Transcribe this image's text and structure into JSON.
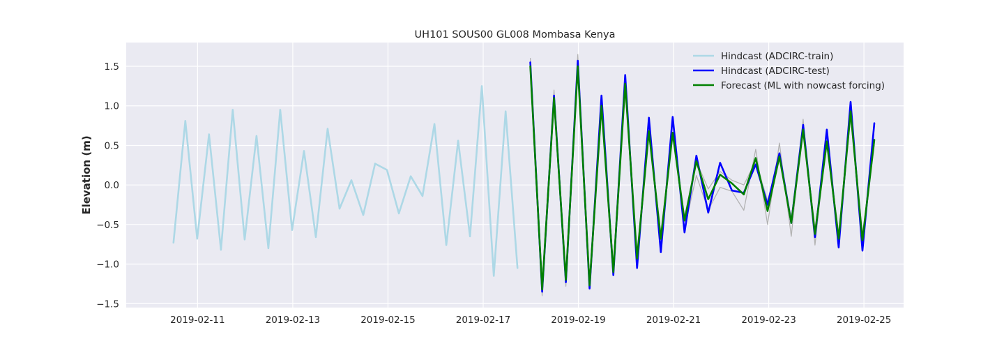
{
  "chart_data": {
    "type": "line",
    "title": "UH101 SOUS00 GL008 Mombasa Kenya",
    "xlabel": "",
    "ylabel": "Elevation (m)",
    "x_axis": "date",
    "xlim": [
      "2019-02-09T12:00",
      "2019-02-25T20:00"
    ],
    "ylim": [
      -1.55,
      1.8
    ],
    "grid": true,
    "legend_position": "top-right",
    "x_ticks": [
      "2019-02-11",
      "2019-02-13",
      "2019-02-15",
      "2019-02-17",
      "2019-02-19",
      "2019-02-21",
      "2019-02-23",
      "2019-02-25"
    ],
    "y_ticks": [
      {
        "value": 1.5,
        "label": "1.5"
      },
      {
        "value": 1.0,
        "label": "1.0"
      },
      {
        "value": 0.5,
        "label": "0.5"
      },
      {
        "value": 0.0,
        "label": "0.0"
      },
      {
        "value": -0.5,
        "label": "−0.5"
      },
      {
        "value": -1.0,
        "label": "−1.0"
      },
      {
        "value": -1.5,
        "label": "−1.5"
      }
    ],
    "series": [
      {
        "name": "",
        "color": "#b3b3b3",
        "in_legend": false,
        "points": [
          [
            "2019-02-17T23:46",
            1.6
          ],
          [
            "2019-02-18T05:45",
            -1.4
          ],
          [
            "2019-02-18T11:44",
            1.2
          ],
          [
            "2019-02-18T17:43",
            -1.28
          ],
          [
            "2019-02-18T23:42",
            1.65
          ],
          [
            "2019-02-19T05:40",
            -1.3
          ],
          [
            "2019-02-19T11:39",
            1.1
          ],
          [
            "2019-02-19T17:38",
            -1.12
          ],
          [
            "2019-02-19T23:37",
            1.35
          ],
          [
            "2019-02-20T05:36",
            -1.0
          ],
          [
            "2019-02-20T11:35",
            0.8
          ],
          [
            "2019-02-20T17:34",
            -0.75
          ],
          [
            "2019-02-20T23:33",
            0.8
          ],
          [
            "2019-02-21T05:32",
            -0.55
          ],
          [
            "2019-02-21T11:30",
            0.12
          ],
          [
            "2019-02-21T17:29",
            -0.32
          ],
          [
            "2019-02-21T23:28",
            -0.03
          ],
          [
            "2019-02-22T05:27",
            -0.08
          ],
          [
            "2019-02-22T11:26",
            -0.32
          ],
          [
            "2019-02-22T17:25",
            0.45
          ],
          [
            "2019-02-22T23:24",
            -0.5
          ],
          [
            "2019-02-23T05:23",
            0.53
          ],
          [
            "2019-02-23T11:22",
            -0.65
          ],
          [
            "2019-02-23T17:20",
            0.83
          ],
          [
            "2019-02-23T23:19",
            -0.76
          ],
          [
            "2019-02-24T05:18",
            0.62
          ],
          [
            "2019-02-24T11:17",
            -0.8
          ],
          [
            "2019-02-24T17:16",
            0.99
          ],
          [
            "2019-02-24T23:15",
            -0.78
          ],
          [
            "2019-02-25T05:14",
            0.55
          ]
        ]
      },
      {
        "name": "",
        "color": "#b3b3b3",
        "in_legend": false,
        "points": [
          [
            "2019-02-17T23:46",
            1.5
          ],
          [
            "2019-02-18T05:45",
            -1.3
          ],
          [
            "2019-02-18T11:44",
            1.05
          ],
          [
            "2019-02-18T17:43",
            -1.15
          ],
          [
            "2019-02-18T23:42",
            1.45
          ],
          [
            "2019-02-19T05:40",
            -1.2
          ],
          [
            "2019-02-19T11:39",
            0.95
          ],
          [
            "2019-02-19T17:38",
            -1.0
          ],
          [
            "2019-02-19T23:37",
            1.2
          ],
          [
            "2019-02-20T05:36",
            -0.85
          ],
          [
            "2019-02-20T11:35",
            0.65
          ],
          [
            "2019-02-20T17:34",
            -0.6
          ],
          [
            "2019-02-20T23:33",
            0.62
          ],
          [
            "2019-02-21T05:32",
            -0.4
          ],
          [
            "2019-02-21T11:30",
            0.3
          ],
          [
            "2019-02-21T17:29",
            -0.05
          ],
          [
            "2019-02-21T23:28",
            0.17
          ],
          [
            "2019-02-22T05:27",
            0.06
          ],
          [
            "2019-02-22T11:26",
            0.0
          ],
          [
            "2019-02-22T17:25",
            0.3
          ],
          [
            "2019-02-22T23:24",
            -0.2
          ],
          [
            "2019-02-23T05:23",
            0.36
          ],
          [
            "2019-02-23T11:22",
            -0.42
          ],
          [
            "2019-02-23T17:20",
            0.72
          ],
          [
            "2019-02-23T23:19",
            -0.55
          ],
          [
            "2019-02-24T05:18",
            0.5
          ],
          [
            "2019-02-24T11:17",
            -0.6
          ],
          [
            "2019-02-24T17:16",
            0.85
          ],
          [
            "2019-02-24T23:15",
            -0.62
          ],
          [
            "2019-02-25T05:14",
            0.5
          ]
        ]
      },
      {
        "name": "Hindcast (ADCIRC-train)",
        "color": "#add8e6",
        "in_legend": true,
        "points": [
          [
            "2019-02-10T11:50",
            -0.73
          ],
          [
            "2019-02-10T17:49",
            0.81
          ],
          [
            "2019-02-10T23:48",
            -0.68
          ],
          [
            "2019-02-11T05:47",
            0.64
          ],
          [
            "2019-02-11T11:46",
            -0.82
          ],
          [
            "2019-02-11T17:44",
            0.95
          ],
          [
            "2019-02-11T23:43",
            -0.69
          ],
          [
            "2019-02-12T05:42",
            0.62
          ],
          [
            "2019-02-12T11:41",
            -0.8
          ],
          [
            "2019-02-12T17:40",
            0.95
          ],
          [
            "2019-02-12T23:39",
            -0.57
          ],
          [
            "2019-02-13T05:38",
            0.43
          ],
          [
            "2019-02-13T11:37",
            -0.66
          ],
          [
            "2019-02-13T17:35",
            0.71
          ],
          [
            "2019-02-13T23:34",
            -0.3
          ],
          [
            "2019-02-14T05:33",
            0.06
          ],
          [
            "2019-02-14T11:32",
            -0.38
          ],
          [
            "2019-02-14T17:31",
            0.27
          ],
          [
            "2019-02-14T23:30",
            0.19
          ],
          [
            "2019-02-15T05:29",
            -0.36
          ],
          [
            "2019-02-15T11:28",
            0.11
          ],
          [
            "2019-02-15T17:26",
            -0.14
          ],
          [
            "2019-02-15T23:25",
            0.77
          ],
          [
            "2019-02-16T05:24",
            -0.76
          ],
          [
            "2019-02-16T11:23",
            0.56
          ],
          [
            "2019-02-16T17:22",
            -0.65
          ],
          [
            "2019-02-16T23:21",
            1.25
          ],
          [
            "2019-02-17T05:20",
            -1.15
          ],
          [
            "2019-02-17T11:19",
            0.93
          ],
          [
            "2019-02-17T17:17",
            -1.05
          ]
        ]
      },
      {
        "name": "Hindcast (ADCIRC-test)",
        "color": "#0000ff",
        "in_legend": true,
        "points": [
          [
            "2019-02-17T23:46",
            1.55
          ],
          [
            "2019-02-18T05:45",
            -1.35
          ],
          [
            "2019-02-18T11:44",
            1.13
          ],
          [
            "2019-02-18T17:43",
            -1.23
          ],
          [
            "2019-02-18T23:42",
            1.57
          ],
          [
            "2019-02-19T05:40",
            -1.31
          ],
          [
            "2019-02-19T11:39",
            1.13
          ],
          [
            "2019-02-19T17:38",
            -1.14
          ],
          [
            "2019-02-19T23:37",
            1.39
          ],
          [
            "2019-02-20T05:36",
            -1.05
          ],
          [
            "2019-02-20T11:35",
            0.85
          ],
          [
            "2019-02-20T17:34",
            -0.85
          ],
          [
            "2019-02-20T23:33",
            0.86
          ],
          [
            "2019-02-21T05:32",
            -0.6
          ],
          [
            "2019-02-21T11:30",
            0.37
          ],
          [
            "2019-02-21T17:29",
            -0.35
          ],
          [
            "2019-02-21T23:28",
            0.28
          ],
          [
            "2019-02-22T05:27",
            -0.07
          ],
          [
            "2019-02-22T11:26",
            -0.1
          ],
          [
            "2019-02-22T17:25",
            0.26
          ],
          [
            "2019-02-22T23:24",
            -0.25
          ],
          [
            "2019-02-23T05:23",
            0.4
          ],
          [
            "2019-02-23T11:22",
            -0.48
          ],
          [
            "2019-02-23T17:20",
            0.76
          ],
          [
            "2019-02-23T23:19",
            -0.66
          ],
          [
            "2019-02-24T05:18",
            0.7
          ],
          [
            "2019-02-24T11:17",
            -0.79
          ],
          [
            "2019-02-24T17:16",
            1.05
          ],
          [
            "2019-02-24T23:15",
            -0.83
          ],
          [
            "2019-02-25T05:14",
            0.78
          ]
        ]
      },
      {
        "name": "Forecast (ML with nowcast forcing)",
        "color": "#008000",
        "in_legend": true,
        "points": [
          [
            "2019-02-17T23:46",
            1.5
          ],
          [
            "2019-02-18T05:45",
            -1.32
          ],
          [
            "2019-02-18T11:44",
            1.1
          ],
          [
            "2019-02-18T17:43",
            -1.2
          ],
          [
            "2019-02-18T23:42",
            1.5
          ],
          [
            "2019-02-19T05:40",
            -1.27
          ],
          [
            "2019-02-19T11:39",
            1.0
          ],
          [
            "2019-02-19T17:38",
            -1.1
          ],
          [
            "2019-02-19T23:37",
            1.28
          ],
          [
            "2019-02-20T05:36",
            -0.93
          ],
          [
            "2019-02-20T11:35",
            0.68
          ],
          [
            "2019-02-20T17:34",
            -0.68
          ],
          [
            "2019-02-20T23:33",
            0.66
          ],
          [
            "2019-02-21T05:32",
            -0.45
          ],
          [
            "2019-02-21T11:30",
            0.3
          ],
          [
            "2019-02-21T17:29",
            -0.18
          ],
          [
            "2019-02-21T23:28",
            0.13
          ],
          [
            "2019-02-22T05:27",
            0.02
          ],
          [
            "2019-02-22T11:26",
            -0.12
          ],
          [
            "2019-02-22T17:25",
            0.34
          ],
          [
            "2019-02-22T23:24",
            -0.33
          ],
          [
            "2019-02-23T05:23",
            0.36
          ],
          [
            "2019-02-23T11:22",
            -0.48
          ],
          [
            "2019-02-23T17:20",
            0.7
          ],
          [
            "2019-02-23T23:19",
            -0.62
          ],
          [
            "2019-02-24T05:18",
            0.55
          ],
          [
            "2019-02-24T11:17",
            -0.68
          ],
          [
            "2019-02-24T17:16",
            0.93
          ],
          [
            "2019-02-24T23:15",
            -0.7
          ],
          [
            "2019-02-25T05:14",
            0.57
          ]
        ]
      }
    ]
  }
}
